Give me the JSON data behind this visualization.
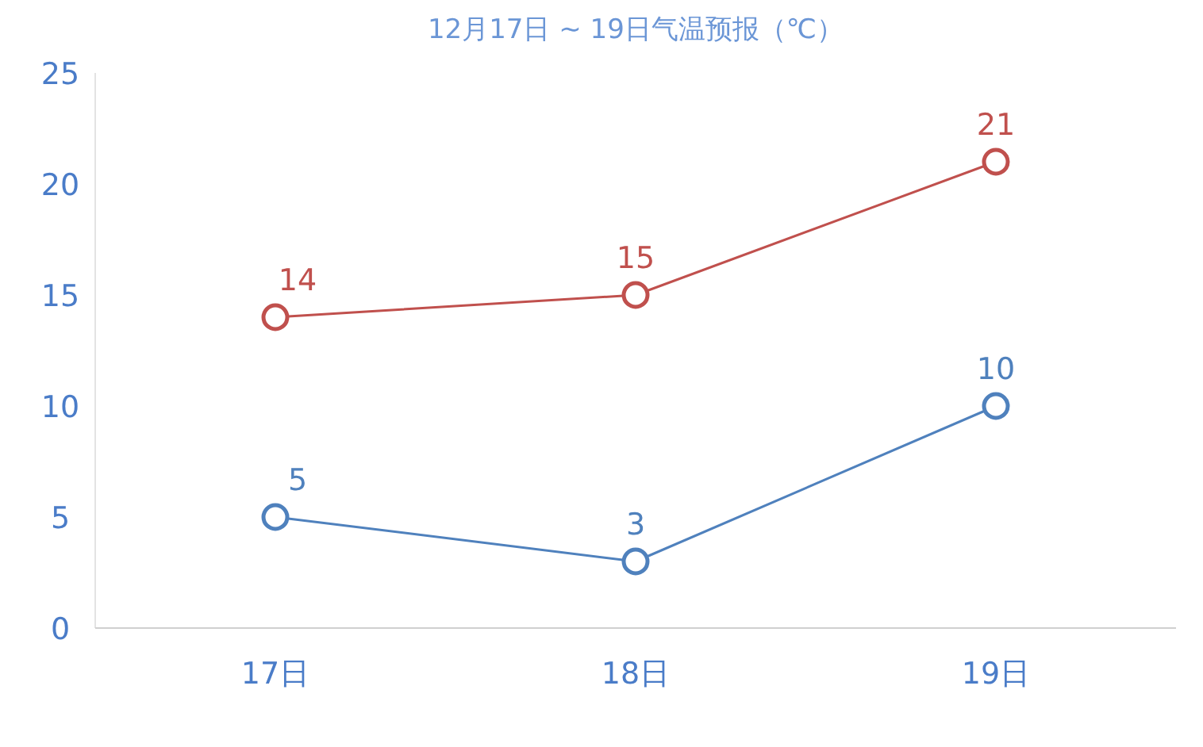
{
  "chart_data": {
    "type": "line",
    "title": "12月17日 ~ 19日气温预报（℃）",
    "categories": [
      "17日",
      "18日",
      "19日"
    ],
    "series": [
      {
        "color": "#c0504d",
        "values": [
          14,
          15,
          21
        ]
      },
      {
        "color": "#4f81bd",
        "values": [
          5,
          3,
          10
        ]
      }
    ],
    "ylim": [
      0,
      25
    ],
    "yticks": [
      0,
      5,
      10,
      15,
      20,
      25
    ],
    "grid": false,
    "marker": "circle",
    "line_style": "solid",
    "data_labels": true
  }
}
